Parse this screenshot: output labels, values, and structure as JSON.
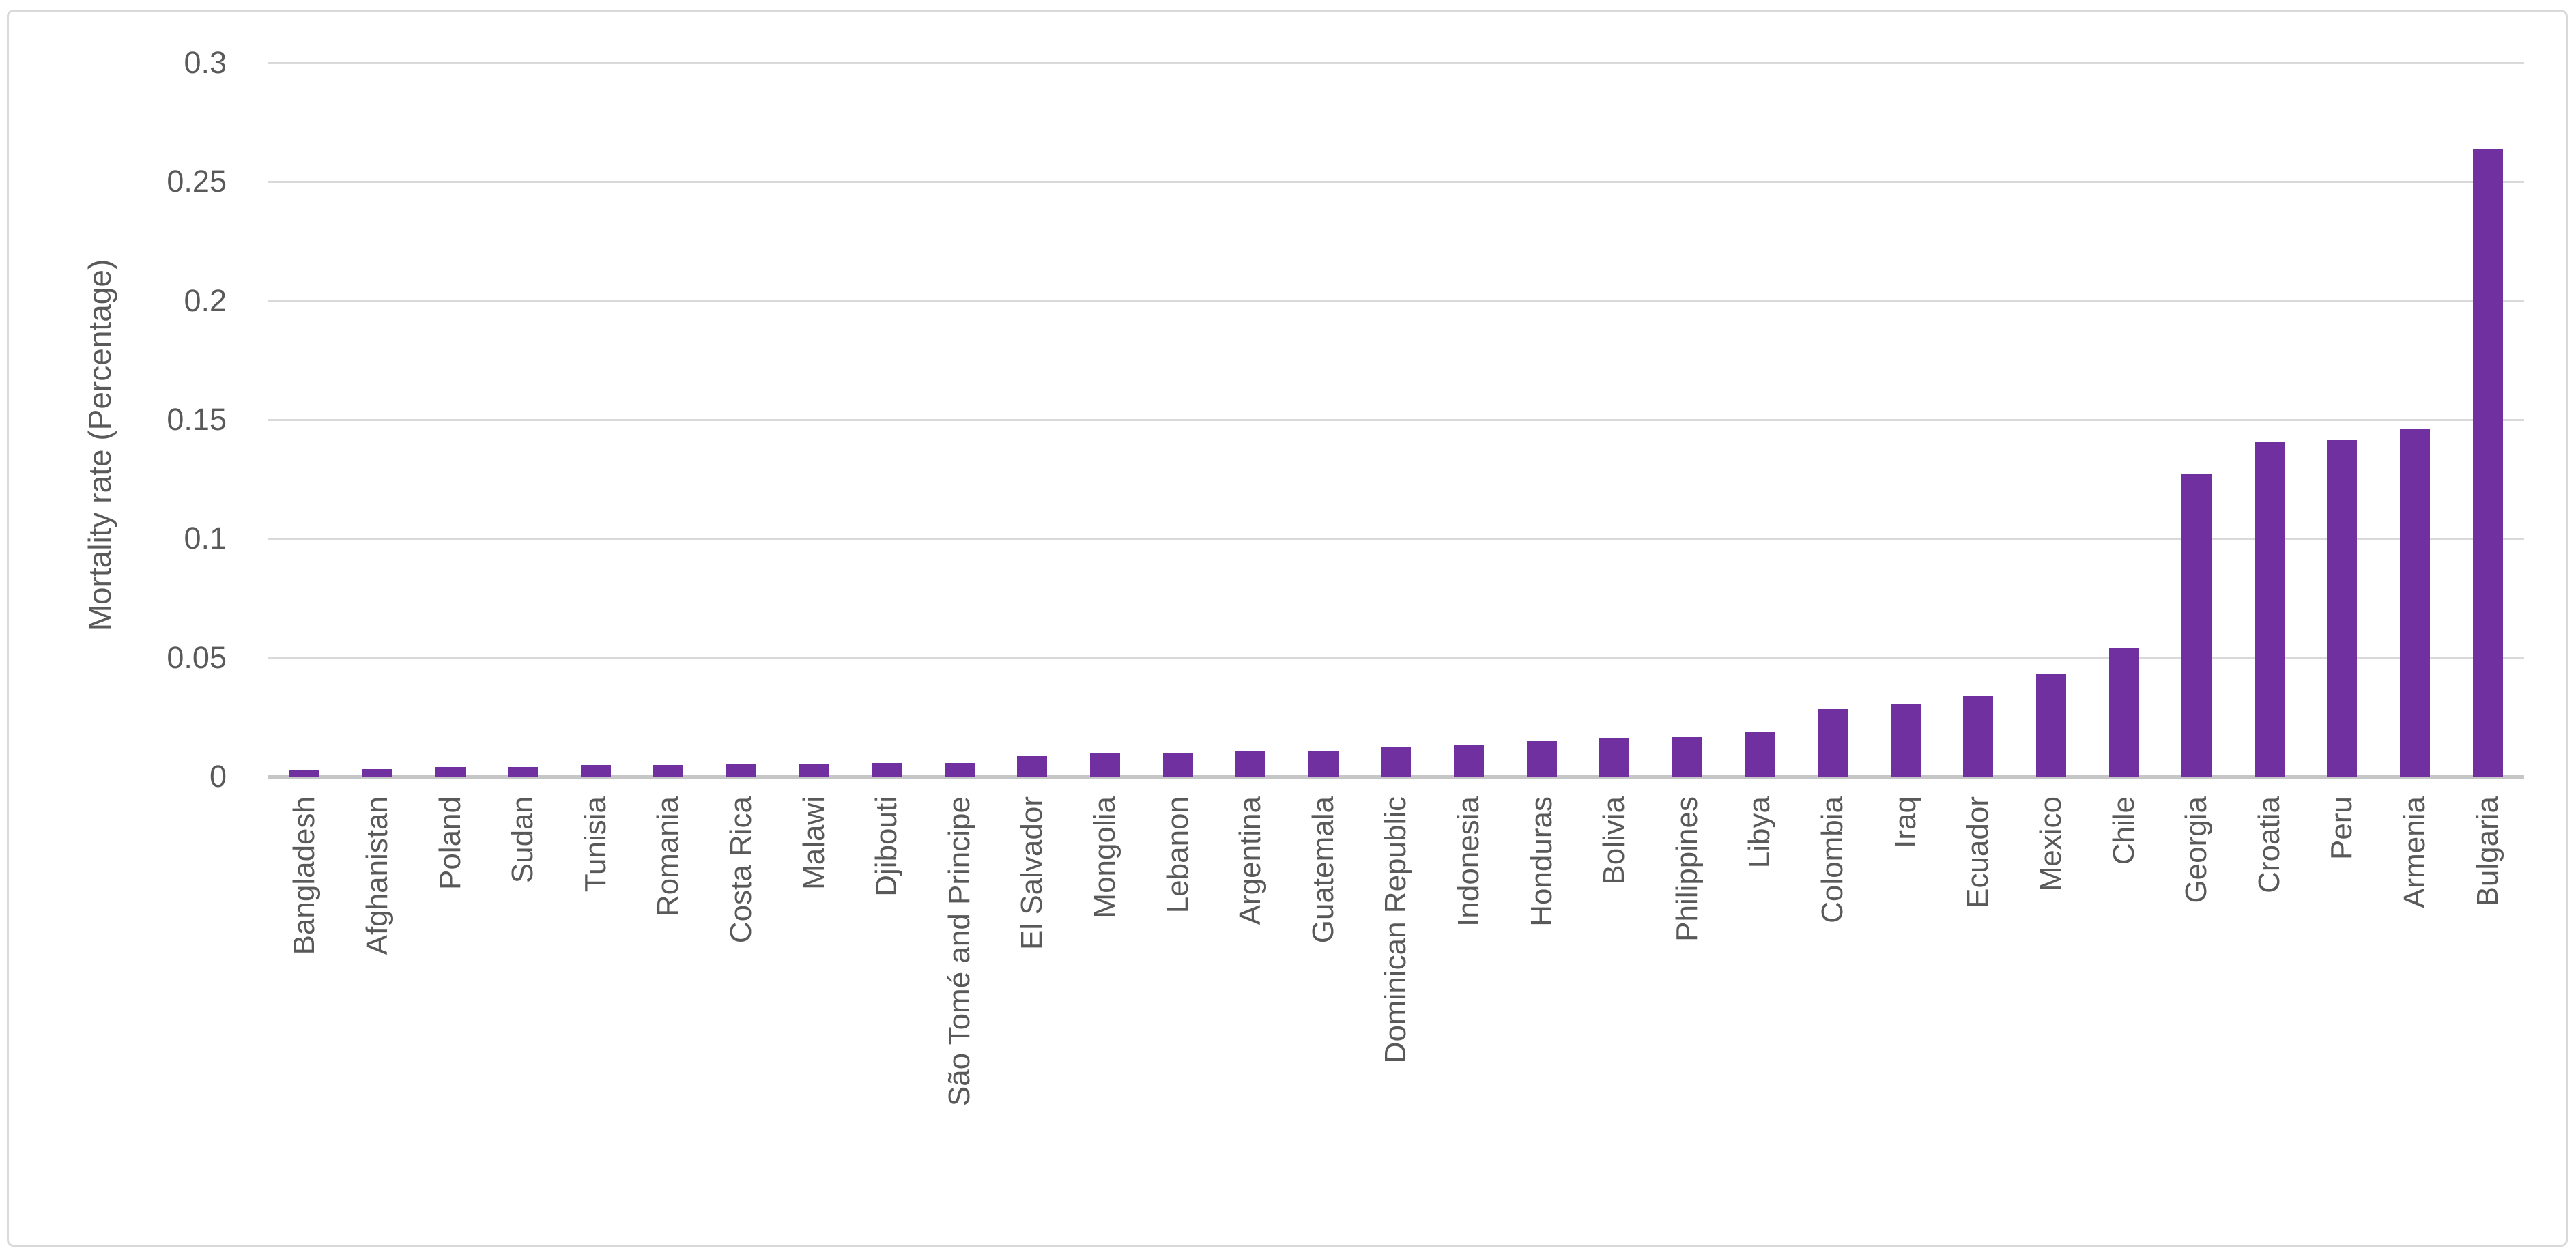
{
  "chart_data": {
    "type": "bar",
    "title": "",
    "xlabel": "",
    "ylabel": "Mortality rate (Percentage)",
    "ylim": [
      0,
      0.3
    ],
    "grid": true,
    "legend": false,
    "bar_color": "#7030A0",
    "gridline_color": "#d9d9d9",
    "axis_line_color": "#c6c6c6",
    "text_color": "#595959",
    "frame_border_color": "#d9d9d9",
    "yticks": [
      {
        "label": "0",
        "value": 0
      },
      {
        "label": "0.05",
        "value": 0.05
      },
      {
        "label": "0.1",
        "value": 0.1
      },
      {
        "label": "0.15",
        "value": 0.15
      },
      {
        "label": "0.2",
        "value": 0.2
      },
      {
        "label": "0.25",
        "value": 0.25
      },
      {
        "label": "0.3",
        "value": 0.3
      }
    ],
    "categories": [
      "Bangladesh",
      "Afghanistan",
      "Poland",
      "Sudan",
      "Tunisia",
      "Romania",
      "Costa Rica",
      "Malawi",
      "Djibouti",
      "São Tomé and Principe",
      "El Salvador",
      "Mongolia",
      "Lebanon",
      "Argentina",
      "Guatemala",
      "Dominican Republic",
      "Indonesia",
      "Honduras",
      "Bolivia",
      "Philippines",
      "Libya",
      "Colombia",
      "Iraq",
      "Ecuador",
      "Mexico",
      "Chile",
      "Georgia",
      "Croatia",
      "Peru",
      "Armenia",
      "Bulgaria"
    ],
    "values": [
      0.0028,
      0.0033,
      0.0041,
      0.0041,
      0.0049,
      0.005,
      0.0055,
      0.0055,
      0.0056,
      0.0056,
      0.0086,
      0.0101,
      0.0101,
      0.0109,
      0.011,
      0.0127,
      0.0134,
      0.0149,
      0.0164,
      0.0166,
      0.0188,
      0.0283,
      0.0307,
      0.0338,
      0.0429,
      0.0542,
      0.1274,
      0.1406,
      0.1414,
      0.1459,
      0.264
    ]
  }
}
